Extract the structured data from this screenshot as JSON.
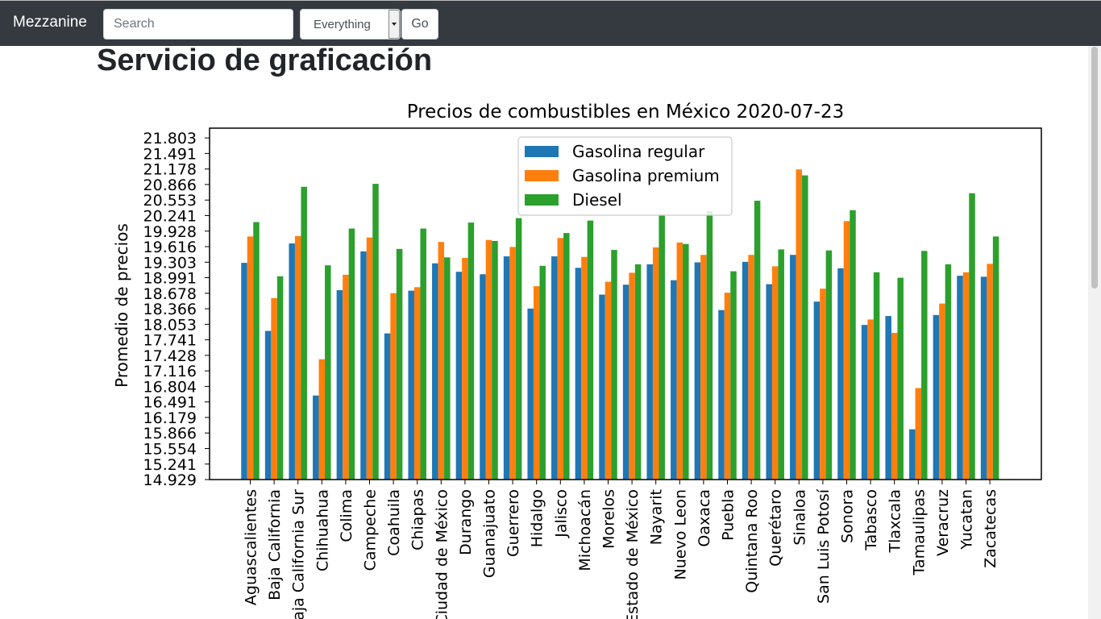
{
  "navbar": {
    "brand": "Mezzanine",
    "search_placeholder": "Search",
    "scope_selected": "Everything",
    "go_label": "Go"
  },
  "page": {
    "title": "Servicio de graficación"
  },
  "chart_data": {
    "type": "bar",
    "title": "Precios de combustibles en México 2020-07-23",
    "xlabel": "",
    "ylabel": "Promedio de precios",
    "ylim": [
      14.929,
      22.0
    ],
    "yticks": [
      "14.929",
      "15.241",
      "15.554",
      "15.866",
      "16.179",
      "16.491",
      "16.804",
      "17.116",
      "17.428",
      "17.741",
      "18.053",
      "18.366",
      "18.678",
      "18.991",
      "19.303",
      "19.616",
      "19.928",
      "20.241",
      "20.553",
      "20.866",
      "21.178",
      "21.491",
      "21.803"
    ],
    "legend_position": "upper center",
    "categories": [
      "Aguascalientes",
      "Baja California",
      "Baja California Sur",
      "Chihuahua",
      "Colima",
      "Campeche",
      "Coahuila",
      "Chiapas",
      "Ciudad de México",
      "Durango",
      "Guanajuato",
      "Guerrero",
      "Hidalgo",
      "Jalisco",
      "Michoacán",
      "Morelos",
      "Estado de México",
      "Nayarit",
      "Nuevo Leon",
      "Oaxaca",
      "Puebla",
      "Quintana Roo",
      "Querétaro",
      "Sinaloa",
      "San Luis Potosí",
      "Sonora",
      "Tabasco",
      "Tlaxcala",
      "Tamaulipas",
      "Veracruz",
      "Yucatan",
      "Zacatecas"
    ],
    "series": [
      {
        "name": "Gasolina regular",
        "color": "#1f77b4",
        "values": [
          19.29,
          17.92,
          19.68,
          16.62,
          18.74,
          19.52,
          17.87,
          18.73,
          19.28,
          19.11,
          19.06,
          19.42,
          18.37,
          19.42,
          19.19,
          18.65,
          18.85,
          19.26,
          18.94,
          19.3,
          18.34,
          19.31,
          18.86,
          19.45,
          18.51,
          19.18,
          18.04,
          18.22,
          15.94,
          18.24,
          19.03,
          19.01
        ]
      },
      {
        "name": "Gasolina premium",
        "color": "#ff7f0e",
        "values": [
          19.82,
          18.58,
          19.83,
          17.35,
          19.05,
          19.8,
          18.68,
          18.8,
          19.71,
          19.39,
          19.75,
          19.61,
          18.82,
          19.79,
          19.41,
          18.91,
          19.09,
          19.6,
          19.7,
          19.45,
          18.69,
          19.45,
          19.22,
          21.17,
          18.77,
          20.13,
          18.15,
          17.88,
          16.77,
          18.47,
          19.1,
          19.27
        ]
      },
      {
        "name": "Diesel",
        "color": "#2ca02c",
        "values": [
          20.11,
          19.02,
          20.82,
          19.24,
          19.98,
          20.88,
          19.57,
          19.98,
          19.4,
          20.1,
          19.73,
          20.19,
          19.23,
          19.89,
          20.14,
          19.55,
          19.26,
          20.24,
          19.67,
          20.33,
          19.12,
          20.54,
          19.56,
          21.05,
          19.54,
          20.35,
          19.1,
          18.99,
          19.53,
          19.26,
          20.69,
          19.82
        ]
      }
    ]
  }
}
